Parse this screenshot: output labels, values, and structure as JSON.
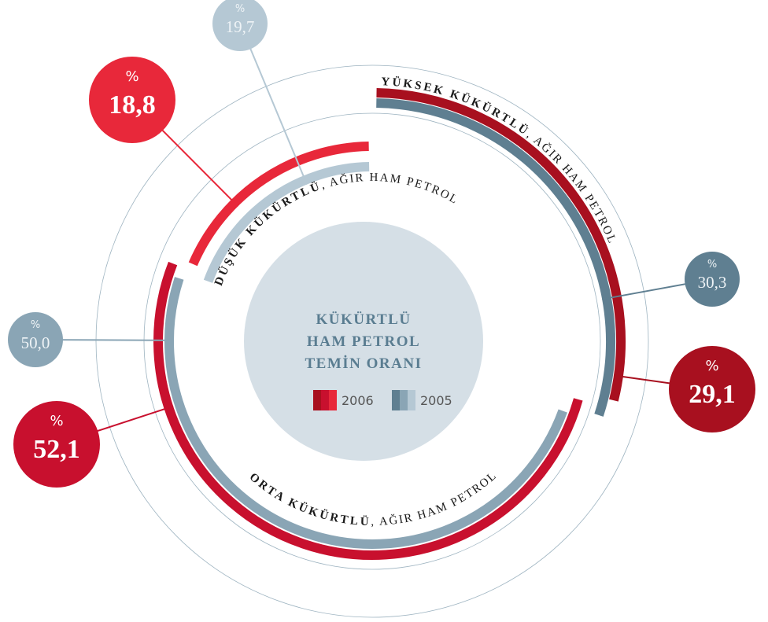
{
  "chart_data": {
    "type": "radial_bar",
    "title": [
      "KÜKÜRTLÜ",
      "HAM PETROL",
      "TEMİN ORANI"
    ],
    "categories": [
      "YÜKSEK KÜKÜRTLÜ",
      "ORTA KÜKÜRTLÜ",
      "DÜŞÜK KÜKÜRTLÜ"
    ],
    "category_detail": ", AĞIR HAM PETROL",
    "unit": "%",
    "series": [
      {
        "name": "2006",
        "color": "#c8102e",
        "colors": [
          "#a8101f",
          "#c8102e",
          "#e8283a"
        ],
        "values": [
          29.1,
          52.1,
          18.8
        ],
        "value_labels": [
          "29,1",
          "52,1",
          "18,8"
        ]
      },
      {
        "name": "2005",
        "color": "#7f9bac",
        "colors": [
          "#5f7f91",
          "#8aa5b5",
          "#b5c8d4"
        ],
        "values": [
          30.3,
          50.0,
          19.7
        ],
        "value_labels": [
          "30,3",
          "50,0",
          "19,7"
        ]
      }
    ]
  }
}
